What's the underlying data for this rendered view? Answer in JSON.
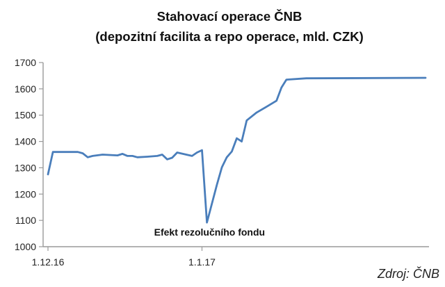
{
  "chart_data": {
    "type": "line",
    "title": "Stahovací operace ČNB",
    "subtitle": "(depozitní facilita a repo operace, mld. CZK)",
    "xlabel": "",
    "ylabel": "",
    "ylim": [
      1000,
      1700
    ],
    "y_ticks": [
      1000,
      1100,
      1200,
      1300,
      1400,
      1500,
      1600,
      1700
    ],
    "y_tick_labels": [
      "1000",
      "1100",
      "1200",
      "1300",
      "1400",
      "1500",
      "1600",
      "1700"
    ],
    "x_range": [
      "2016-12-01",
      "2017-02-15"
    ],
    "x_ticks": [
      {
        "date": "2016-12-01",
        "label": "1.12.16"
      },
      {
        "date": "2017-01-01",
        "label": "1.1.17"
      }
    ],
    "grid": false,
    "legend": "none",
    "series": [
      {
        "color": "#4a7ebb",
        "points": [
          {
            "x": "2016-12-01",
            "y": 1275
          },
          {
            "x": "2016-12-02",
            "y": 1360
          },
          {
            "x": "2016-12-05",
            "y": 1360
          },
          {
            "x": "2016-12-07",
            "y": 1360
          },
          {
            "x": "2016-12-08",
            "y": 1355
          },
          {
            "x": "2016-12-09",
            "y": 1340
          },
          {
            "x": "2016-12-10",
            "y": 1345
          },
          {
            "x": "2016-12-12",
            "y": 1350
          },
          {
            "x": "2016-12-15",
            "y": 1347
          },
          {
            "x": "2016-12-16",
            "y": 1353
          },
          {
            "x": "2016-12-17",
            "y": 1345
          },
          {
            "x": "2016-12-18",
            "y": 1345
          },
          {
            "x": "2016-12-19",
            "y": 1340
          },
          {
            "x": "2016-12-21",
            "y": 1342
          },
          {
            "x": "2016-12-23",
            "y": 1345
          },
          {
            "x": "2016-12-24",
            "y": 1350
          },
          {
            "x": "2016-12-25",
            "y": 1332
          },
          {
            "x": "2016-12-26",
            "y": 1338
          },
          {
            "x": "2016-12-27",
            "y": 1358
          },
          {
            "x": "2016-12-30",
            "y": 1345
          },
          {
            "x": "2016-12-31",
            "y": 1358
          },
          {
            "x": "2017-01-01",
            "y": 1367
          },
          {
            "x": "2017-01-02",
            "y": 1092
          },
          {
            "x": "2017-01-04",
            "y": 1235
          },
          {
            "x": "2017-01-05",
            "y": 1302
          },
          {
            "x": "2017-01-06",
            "y": 1340
          },
          {
            "x": "2017-01-07",
            "y": 1362
          },
          {
            "x": "2017-01-08",
            "y": 1412
          },
          {
            "x": "2017-01-09",
            "y": 1400
          },
          {
            "x": "2017-01-10",
            "y": 1480
          },
          {
            "x": "2017-01-12",
            "y": 1510
          },
          {
            "x": "2017-01-14",
            "y": 1532
          },
          {
            "x": "2017-01-16",
            "y": 1555
          },
          {
            "x": "2017-01-17",
            "y": 1605
          },
          {
            "x": "2017-01-18",
            "y": 1635
          },
          {
            "x": "2017-01-22",
            "y": 1640
          },
          {
            "x": "2017-02-15",
            "y": 1642
          }
        ]
      }
    ],
    "annotations": [
      {
        "text": "Efekt rezolučního fondu",
        "x": "2017-01-02",
        "y": 1092
      }
    ],
    "source": "Zdroj: ČNB"
  }
}
